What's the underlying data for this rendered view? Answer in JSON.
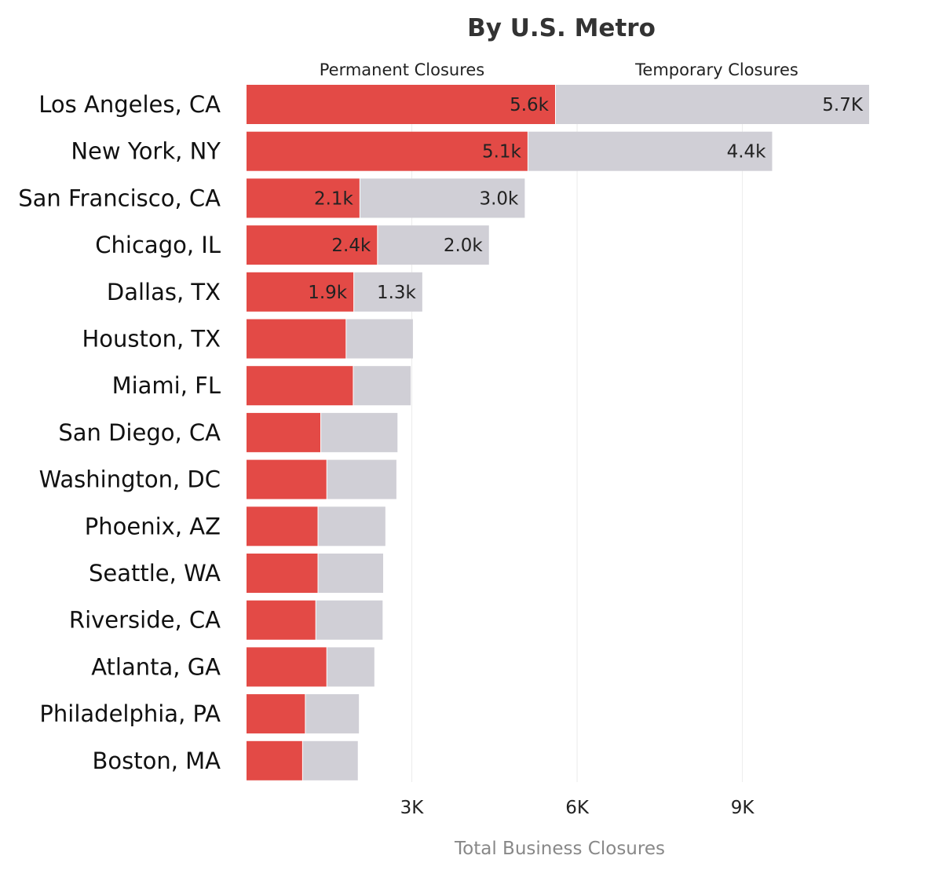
{
  "chart_data": {
    "type": "bar",
    "orientation": "horizontal",
    "stacked": true,
    "title": "By U.S. Metro",
    "xlabel": "Total Business Closures",
    "ylabel": "",
    "xlim": [
      0,
      11400
    ],
    "xticks": [
      3000,
      6000,
      9000
    ],
    "xtick_labels": [
      "3K",
      "6K",
      "9K"
    ],
    "grid": "vertical",
    "legend_placement": "top",
    "categories": [
      "Los Angeles, CA",
      "New York, NY",
      "San Francisco, CA",
      "Chicago, IL",
      "Dallas, TX",
      "Houston, TX",
      "Miami, FL",
      "San Diego, CA",
      "Washington, DC",
      "Phoenix, AZ",
      "Seattle, WA",
      "Riverside, CA",
      "Atlanta, GA",
      "Philadelphia, PA",
      "Boston, MA"
    ],
    "series": [
      {
        "name": "Permanent Closures",
        "color": "#e34a46",
        "values": [
          5600,
          5100,
          2050,
          2370,
          1940,
          1800,
          1930,
          1340,
          1450,
          1290,
          1290,
          1250,
          1450,
          1060,
          1010
        ],
        "data_labels": [
          "5.6k",
          "5.1k",
          "2.1k",
          "2.4k",
          "1.9k",
          "",
          "",
          "",
          "",
          "",
          "",
          "",
          "",
          "",
          ""
        ]
      },
      {
        "name": "Temporary Closures",
        "color": "#d0cfd6",
        "values": [
          5700,
          4440,
          3000,
          2030,
          1250,
          1220,
          1050,
          1400,
          1270,
          1230,
          1190,
          1220,
          870,
          980,
          1010
        ],
        "data_labels": [
          "5.7K",
          "4.4k",
          "3.0k",
          "2.0k",
          "1.3k",
          "",
          "",
          "",
          "",
          "",
          "",
          "",
          "",
          "",
          ""
        ]
      }
    ]
  }
}
